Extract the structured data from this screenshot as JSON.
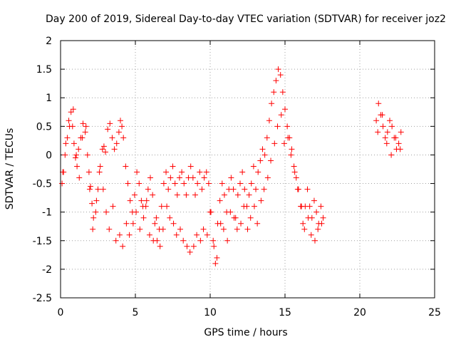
{
  "chart_data": {
    "type": "scatter",
    "title": "Day 200 of 2019, Sidereal Day-to-day VTEC variation (SDTVAR) for receiver joz2",
    "xlabel": "GPS time / hours",
    "ylabel": "SDTVAR / TECUs",
    "xlim": [
      0,
      25
    ],
    "ylim": [
      -2.5,
      2
    ],
    "xticks": [
      "0",
      "5",
      "10",
      "15",
      "20",
      "25"
    ],
    "yticks": [
      "2",
      "1.5",
      "1",
      "0.5",
      "0",
      "-0.5",
      "-1",
      "-1.5",
      "-2",
      "-2.5"
    ],
    "grid": true,
    "marker": "+",
    "color": "#ff0000",
    "series": [
      {
        "name": "SDTVAR",
        "x": [
          0.1,
          0.2,
          0.3,
          0.45,
          0.55,
          0.7,
          0.8,
          0.9,
          1.0,
          1.1,
          1.2,
          1.35,
          1.5,
          1.65,
          1.8,
          1.9,
          2.0,
          2.1,
          2.2,
          2.35,
          2.5,
          2.65,
          2.8,
          2.9,
          3.0,
          3.15,
          3.3,
          3.45,
          3.6,
          3.75,
          3.9,
          4.0,
          4.1,
          4.2,
          4.35,
          4.5,
          4.65,
          4.8,
          4.95,
          5.1,
          5.25,
          5.4,
          5.55,
          5.7,
          5.85,
          6.0,
          6.15,
          6.3,
          6.45,
          6.6,
          6.75,
          6.9,
          7.05,
          7.2,
          7.35,
          7.5,
          7.65,
          7.8,
          7.95,
          8.1,
          8.25,
          8.4,
          8.55,
          8.7,
          8.85,
          9.0,
          9.15,
          9.3,
          9.45,
          9.6,
          9.75,
          9.9,
          10.05,
          10.2,
          10.35,
          10.5,
          10.65,
          10.8,
          10.95,
          11.1,
          11.25,
          11.4,
          11.55,
          11.7,
          11.85,
          12.0,
          12.15,
          12.3,
          12.45,
          12.6,
          12.75,
          12.9,
          13.05,
          13.2,
          13.35,
          13.5,
          13.65,
          13.8,
          13.95,
          14.1,
          14.25,
          14.4,
          14.55,
          14.7,
          14.85,
          15.0,
          15.15,
          15.3,
          15.45,
          15.6,
          15.75,
          15.9,
          16.05,
          16.2,
          16.35,
          16.5,
          16.65,
          16.8,
          16.95,
          17.1,
          17.25,
          17.4,
          17.55,
          21.1,
          21.25,
          21.4,
          21.55,
          21.7,
          21.85,
          22.0,
          22.15,
          22.3,
          22.45,
          22.6,
          22.75,
          0.15,
          0.35,
          0.6,
          0.85,
          1.05,
          1.25,
          1.45,
          1.7,
          1.95,
          2.15,
          2.4,
          2.6,
          2.85,
          3.05,
          3.25,
          3.5,
          3.7,
          3.95,
          4.15,
          4.4,
          4.6,
          4.85,
          5.05,
          5.3,
          5.5,
          5.75,
          5.95,
          6.2,
          6.4,
          6.65,
          6.85,
          7.1,
          7.3,
          7.55,
          7.75,
          8.0,
          8.2,
          8.45,
          8.65,
          8.9,
          9.1,
          9.35,
          9.55,
          9.8,
          10.0,
          10.25,
          10.45,
          10.7,
          10.9,
          11.15,
          11.35,
          11.6,
          11.8,
          12.05,
          12.25,
          12.5,
          12.7,
          12.95,
          13.15,
          13.4,
          13.6,
          13.85,
          14.05,
          14.3,
          14.5,
          14.75,
          14.95,
          15.2,
          15.4,
          15.65,
          15.85,
          16.1,
          16.3,
          16.55,
          16.75,
          17.0,
          17.2,
          17.45,
          21.2,
          21.5,
          21.8,
          22.1,
          22.4,
          22.7
        ],
        "y": [
          -0.5,
          -0.3,
          0.0,
          0.3,
          0.6,
          0.75,
          0.5,
          0.2,
          -0.05,
          -0.2,
          0.1,
          0.3,
          0.55,
          0.4,
          0.0,
          -0.3,
          -0.55,
          -0.85,
          -1.1,
          -1.0,
          -0.6,
          -0.2,
          0.1,
          0.15,
          0.05,
          0.45,
          0.55,
          0.3,
          0.1,
          0.2,
          0.4,
          0.6,
          0.5,
          0.3,
          -0.2,
          -0.5,
          -0.8,
          -1.0,
          -0.7,
          -0.3,
          -0.5,
          -0.8,
          -1.1,
          -0.9,
          -0.6,
          -0.4,
          -0.7,
          -1.2,
          -1.5,
          -1.3,
          -0.9,
          -0.5,
          -0.3,
          -0.6,
          -0.4,
          -0.2,
          -0.5,
          -0.7,
          -0.4,
          -0.3,
          -0.5,
          -0.7,
          -0.4,
          -0.2,
          -0.4,
          -0.7,
          -0.5,
          -0.3,
          -0.6,
          -0.4,
          -0.3,
          -0.5,
          -1.0,
          -1.5,
          -1.9,
          -1.2,
          -0.8,
          -0.5,
          -0.7,
          -1.0,
          -0.6,
          -0.4,
          -0.6,
          -1.1,
          -0.7,
          -0.5,
          -0.3,
          -0.6,
          -0.9,
          -0.7,
          -0.5,
          -0.2,
          -0.6,
          -0.3,
          -0.1,
          0.1,
          0.0,
          0.3,
          0.6,
          0.9,
          1.1,
          1.3,
          1.5,
          1.4,
          1.1,
          0.8,
          0.5,
          0.3,
          0.1,
          -0.2,
          -0.4,
          -0.6,
          -0.9,
          -1.2,
          -0.9,
          -0.6,
          -0.9,
          -1.1,
          -0.8,
          -1.0,
          -1.2,
          -0.9,
          -1.1,
          0.6,
          0.9,
          0.7,
          0.5,
          0.3,
          0.4,
          0.6,
          0.5,
          0.3,
          0.1,
          0.2,
          0.4,
          -0.3,
          0.2,
          0.5,
          0.8,
          0.0,
          -0.4,
          0.3,
          0.5,
          -0.6,
          -1.3,
          -0.8,
          -0.3,
          -0.6,
          -1.0,
          -1.3,
          -0.9,
          -1.5,
          -1.4,
          -1.6,
          -1.2,
          -1.4,
          -1.2,
          -1.0,
          -1.3,
          -0.9,
          -0.8,
          -1.4,
          -1.5,
          -1.1,
          -1.6,
          -1.3,
          -0.9,
          -1.1,
          -1.2,
          -1.4,
          -1.3,
          -1.5,
          -1.6,
          -1.7,
          -1.6,
          -1.4,
          -1.5,
          -1.3,
          -1.4,
          -1.0,
          -1.6,
          -1.8,
          -1.2,
          -1.3,
          -1.5,
          -1.0,
          -1.1,
          -1.3,
          -1.2,
          -0.9,
          -1.3,
          -1.1,
          -0.9,
          -1.2,
          -0.8,
          -0.6,
          -0.4,
          -0.1,
          0.2,
          0.5,
          0.7,
          0.2,
          0.3,
          0.0,
          -0.3,
          -0.6,
          -0.9,
          -1.3,
          -1.1,
          -1.4,
          -1.5,
          -1.3,
          -1.2,
          0.4,
          0.7,
          0.2,
          0.0,
          0.3,
          0.1
        ]
      }
    ]
  }
}
